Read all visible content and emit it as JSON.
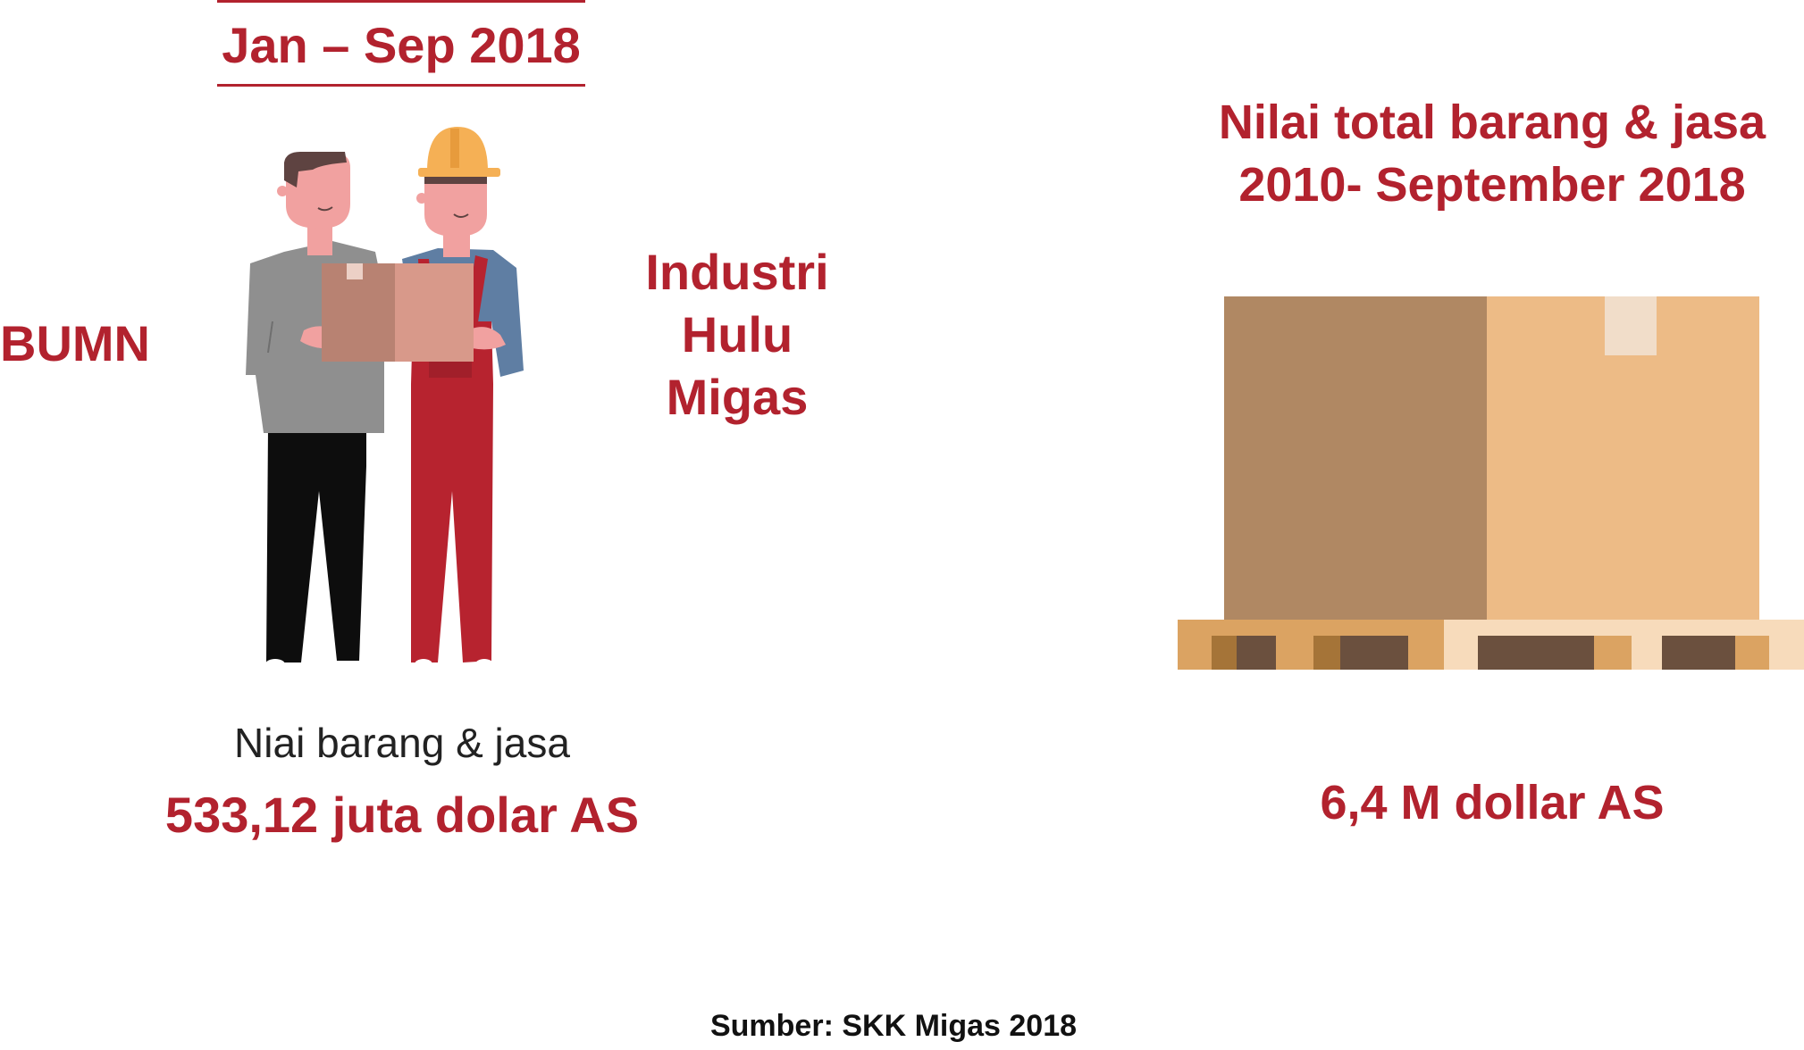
{
  "period": {
    "label": "Jan – Sep 2018"
  },
  "left_party": {
    "label": "BUMN"
  },
  "right_party": {
    "line1": "Industri",
    "line2": "Hulu",
    "line3": "Migas"
  },
  "goods_value": {
    "caption": "Niai barang & jasa",
    "value": "533,12 juta dolar AS"
  },
  "total": {
    "title_line1": "Nilai total  barang & jasa",
    "title_line2": "2010- September 2018",
    "value": "6,4 M dollar AS"
  },
  "source": "Sumber: SKK Migas 2018",
  "colors": {
    "accent": "#b2222e",
    "box_dark": "#b08863",
    "box_light": "#edbb86",
    "pallet": "#dba362",
    "pallet_light": "#f7dbbb"
  },
  "icons": [
    "office-worker-figure",
    "oil-worker-figure",
    "cardboard-box-icon",
    "pallet-box-icon"
  ]
}
